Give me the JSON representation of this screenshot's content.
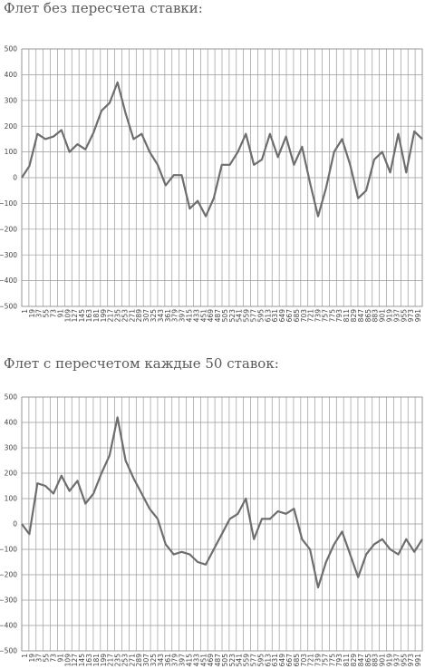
{
  "chart_data": [
    {
      "type": "line",
      "title": "Флет без пересчета ставки:",
      "xlabel": "",
      "ylabel": "",
      "ylim": [
        -500,
        500
      ],
      "yticks": [
        "500",
        "400",
        "300",
        "200",
        "100",
        "0",
        "−100",
        "−200",
        "−300",
        "−400",
        "−500"
      ],
      "x_tick_labels": [
        "1",
        "19",
        "37",
        "55",
        "73",
        "91",
        "109",
        "127",
        "145",
        "163",
        "181",
        "199",
        "217",
        "235",
        "253",
        "271",
        "289",
        "307",
        "325",
        "343",
        "361",
        "379",
        "397",
        "415",
        "433",
        "451",
        "469",
        "487",
        "505",
        "523",
        "541",
        "559",
        "577",
        "595",
        "613",
        "631",
        "649",
        "667",
        "685",
        "703",
        "721",
        "739",
        "757",
        "775",
        "793",
        "811",
        "829",
        "847",
        "865",
        "883",
        "901",
        "919",
        "937",
        "955",
        "973",
        "991"
      ],
      "grid": true,
      "line_color": "#6e6e6e",
      "series": [
        {
          "x": [
            1,
            20,
            40,
            60,
            80,
            100,
            120,
            140,
            160,
            180,
            200,
            220,
            240,
            260,
            280,
            300,
            320,
            340,
            360,
            380,
            400,
            420,
            440,
            460,
            480,
            500,
            520,
            540,
            560,
            580,
            600,
            620,
            640,
            660,
            680,
            700,
            720,
            740,
            760,
            780,
            800,
            820,
            840,
            860,
            880,
            900,
            920,
            940,
            960,
            980,
            1000
          ],
          "values": [
            0,
            45,
            170,
            150,
            160,
            185,
            100,
            130,
            110,
            175,
            260,
            290,
            370,
            250,
            150,
            170,
            100,
            50,
            -30,
            10,
            10,
            -120,
            -90,
            -150,
            -80,
            50,
            50,
            100,
            170,
            50,
            70,
            170,
            80,
            160,
            50,
            120,
            -20,
            -150,
            -40,
            100,
            150,
            50,
            -80,
            -50,
            70,
            100,
            20,
            170,
            20,
            180,
            150
          ]
        }
      ]
    },
    {
      "type": "line",
      "title": "Флет с пересчетом каждые 50 ставок:",
      "xlabel": "",
      "ylabel": "",
      "ylim": [
        -500,
        500
      ],
      "yticks": [
        "500",
        "400",
        "300",
        "200",
        "100",
        "0",
        "−100",
        "−200",
        "−300",
        "−400",
        "−500"
      ],
      "x_tick_labels": [
        "1",
        "19",
        "37",
        "55",
        "73",
        "91",
        "109",
        "127",
        "145",
        "163",
        "181",
        "199",
        "217",
        "235",
        "253",
        "271",
        "289",
        "307",
        "325",
        "343",
        "361",
        "379",
        "397",
        "415",
        "433",
        "451",
        "469",
        "487",
        "505",
        "523",
        "541",
        "559",
        "577",
        "595",
        "613",
        "631",
        "649",
        "667",
        "685",
        "703",
        "721",
        "739",
        "757",
        "775",
        "793",
        "811",
        "829",
        "847",
        "865",
        "883",
        "901",
        "919",
        "937",
        "955",
        "973",
        "991"
      ],
      "grid": true,
      "line_color": "#6e6e6e",
      "series": [
        {
          "x": [
            1,
            20,
            40,
            60,
            80,
            100,
            120,
            140,
            160,
            180,
            200,
            220,
            240,
            260,
            280,
            300,
            320,
            340,
            360,
            380,
            400,
            420,
            440,
            460,
            480,
            500,
            520,
            540,
            560,
            580,
            600,
            620,
            640,
            660,
            680,
            700,
            720,
            740,
            760,
            780,
            800,
            820,
            840,
            860,
            880,
            900,
            920,
            940,
            960,
            980,
            1000
          ],
          "values": [
            0,
            -40,
            160,
            150,
            120,
            190,
            130,
            170,
            80,
            120,
            200,
            270,
            420,
            250,
            180,
            120,
            60,
            20,
            -80,
            -120,
            -110,
            -120,
            -150,
            -160,
            -100,
            -40,
            20,
            40,
            100,
            -60,
            20,
            20,
            50,
            40,
            60,
            -60,
            -100,
            -250,
            -150,
            -80,
            -30,
            -120,
            -210,
            -120,
            -80,
            -60,
            -100,
            -120,
            -60,
            -110,
            -60
          ]
        }
      ]
    }
  ]
}
